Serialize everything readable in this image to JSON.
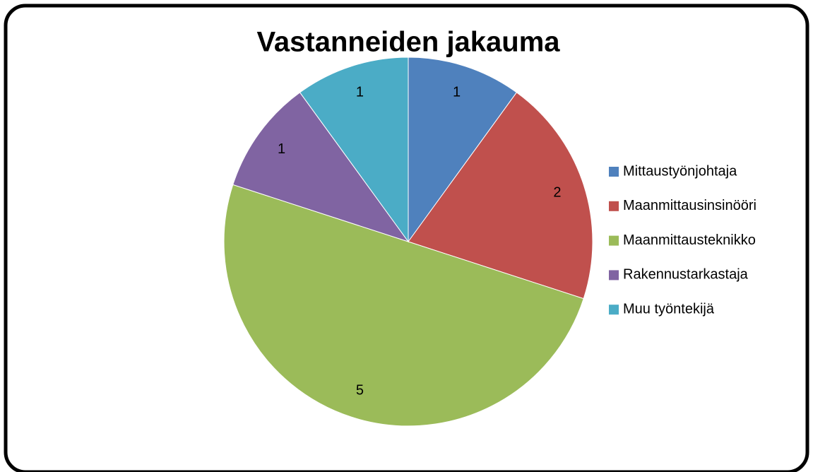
{
  "chart_data": {
    "type": "pie",
    "title": "Vastanneiden jakauma",
    "categories": [
      "Mittaustyönjohtaja",
      "Maanmittausinsinööri",
      "Maanmittausteknikko",
      "Rakennustarkastaja",
      "Muu työntekijä"
    ],
    "values": [
      1,
      2,
      5,
      1,
      1
    ],
    "colors": [
      "#4f81bd",
      "#c0504d",
      "#9bbb59",
      "#8064a2",
      "#4bacc6"
    ],
    "legend": "right"
  }
}
